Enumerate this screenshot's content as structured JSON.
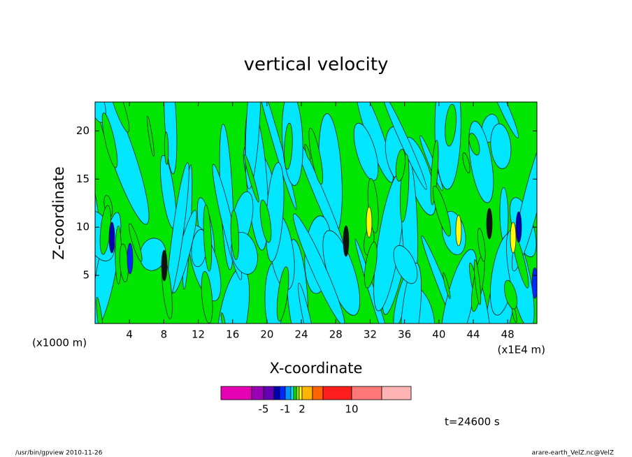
{
  "chart_data": {
    "type": "contour",
    "title": "vertical velocity",
    "x_label": "X-coordinate",
    "y_label": "Z-coordinate",
    "x_unit": "(x1E4 m)",
    "y_unit": "(x1000 m)",
    "xlim": [
      0,
      51.4
    ],
    "ylim": [
      0,
      23
    ],
    "xticks": [
      4,
      8,
      12,
      16,
      20,
      24,
      28,
      32,
      36,
      40,
      44,
      48
    ],
    "yticks": [
      5,
      10,
      15,
      20
    ],
    "colorbar": {
      "colors": [
        "#e600b4",
        "#9b00b4",
        "#6400b4",
        "#0000b4",
        "#0028ff",
        "#0096ff",
        "#00e6ff",
        "#00e600",
        "#96e600",
        "#ffff00",
        "#ffb400",
        "#ff6400",
        "#ff1e1e",
        "#ff7878",
        "#ffb4b4"
      ],
      "ticks": [
        -5,
        -1,
        2,
        10
      ]
    },
    "time_label": "t=24600 s",
    "footer_left": "/usr/bin/gpview   2010-11-26",
    "footer_right": "arare-earth_VelZ.nc@VelZ"
  }
}
